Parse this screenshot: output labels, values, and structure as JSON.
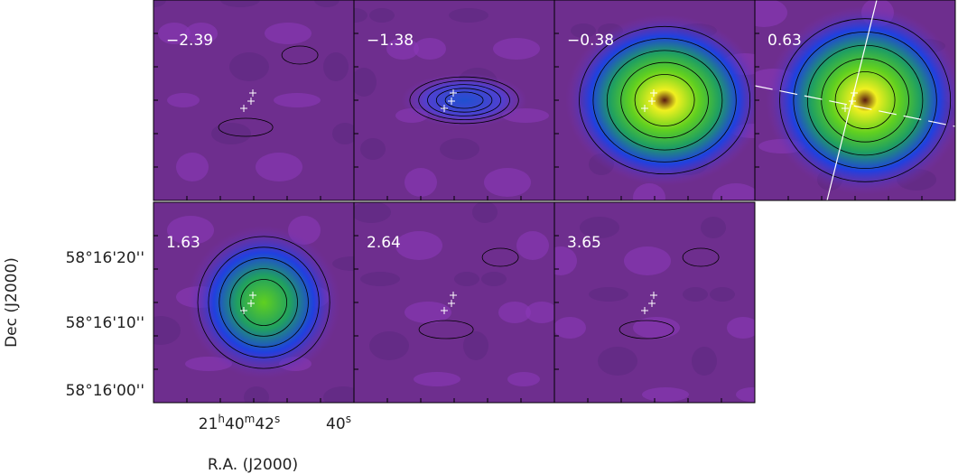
{
  "panels": [
    {
      "label": "−2.39"
    },
    {
      "label": "−1.38"
    },
    {
      "label": "−0.38"
    },
    {
      "label": "0.63"
    },
    {
      "label": "1.63"
    },
    {
      "label": "2.64"
    },
    {
      "label": "3.65"
    }
  ],
  "y_axis": {
    "title": "Dec (J2000)",
    "ticks": [
      "58°16'20''",
      "58°16'10''",
      "58°16'00''"
    ]
  },
  "x_axis": {
    "title": "R.A. (J2000)",
    "ticks": [
      {
        "h": "21",
        "h_unit": "h",
        "m": "40",
        "m_unit": "m",
        "s": "42",
        "s_unit": "s"
      },
      {
        "s": "40",
        "s_unit": "s"
      }
    ]
  }
}
